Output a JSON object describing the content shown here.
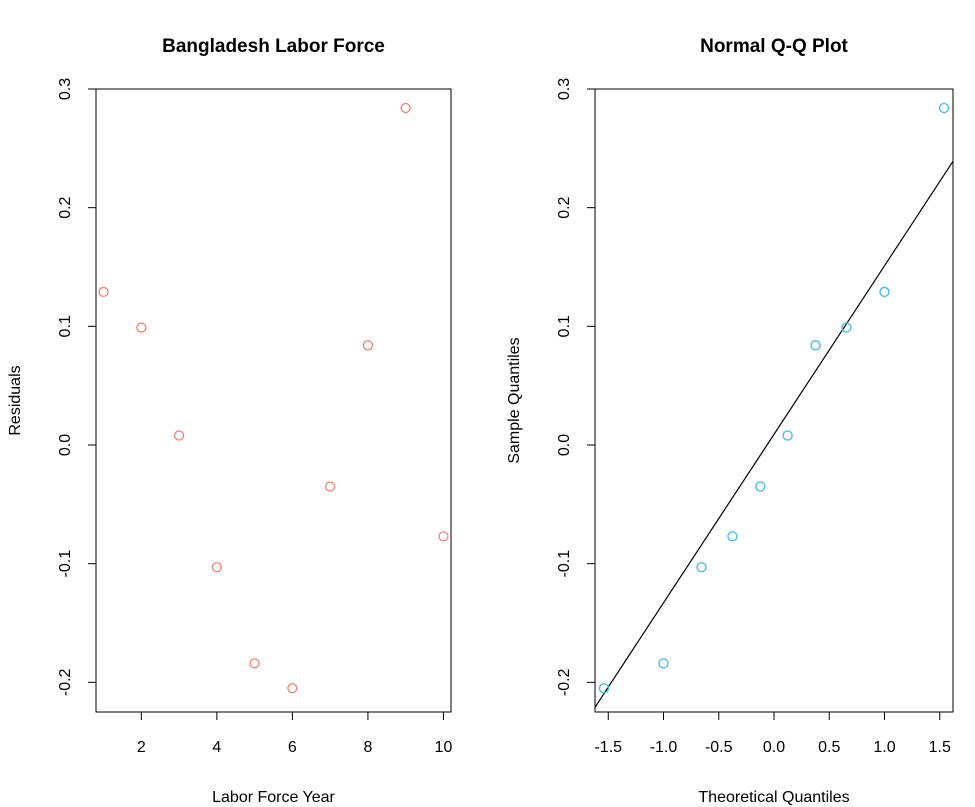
{
  "chart_data": [
    {
      "type": "scatter",
      "title": "Bangladesh Labor Force",
      "xlabel": "Labor Force Year",
      "ylabel": "Residuals",
      "xlim": [
        0.8,
        10.2
      ],
      "ylim": [
        -0.225,
        0.3
      ],
      "xticks": [
        2,
        4,
        6,
        8,
        10
      ],
      "xtick_labels": [
        "2",
        "4",
        "6",
        "8",
        "10"
      ],
      "yticks": [
        -0.2,
        -0.1,
        0.0,
        0.1,
        0.2,
        0.3
      ],
      "ytick_labels": [
        "-0.2",
        "-0.1",
        "0.0",
        "0.1",
        "0.2",
        "0.3"
      ],
      "grid": false,
      "point_color": "#f08070",
      "series": [
        {
          "x": [
            1,
            2,
            3,
            4,
            5,
            6,
            7,
            8,
            9,
            10
          ],
          "y": [
            0.129,
            0.099,
            0.008,
            -0.103,
            -0.184,
            -0.205,
            -0.035,
            0.084,
            0.284,
            -0.077
          ]
        }
      ]
    },
    {
      "type": "scatter",
      "title": "Normal Q-Q Plot",
      "xlabel": "Theoretical Quantiles",
      "ylabel": "Sample Quantiles",
      "xlim": [
        -1.62,
        1.62
      ],
      "ylim": [
        -0.225,
        0.3
      ],
      "xticks": [
        -1.5,
        -1.0,
        -0.5,
        0.0,
        0.5,
        1.0,
        1.5
      ],
      "xtick_labels": [
        "-1.5",
        "-1.0",
        "-0.5",
        "0.0",
        "0.5",
        "1.0",
        "1.5"
      ],
      "yticks": [
        -0.2,
        -0.1,
        0.0,
        0.1,
        0.2,
        0.3
      ],
      "ytick_labels": [
        "-0.2",
        "-0.1",
        "0.0",
        "0.1",
        "0.2",
        "0.3"
      ],
      "grid": false,
      "point_color": "#3cb8e8",
      "series": [
        {
          "x": [
            -1.539,
            -1.0,
            -0.656,
            -0.376,
            -0.123,
            0.123,
            0.376,
            0.656,
            1.0,
            1.539
          ],
          "y": [
            -0.205,
            -0.184,
            -0.103,
            -0.077,
            -0.035,
            0.008,
            0.084,
            0.099,
            0.129,
            0.284
          ]
        }
      ],
      "reference_line": {
        "intercept": 0.009,
        "slope": 0.142,
        "color": "#000000"
      }
    }
  ]
}
